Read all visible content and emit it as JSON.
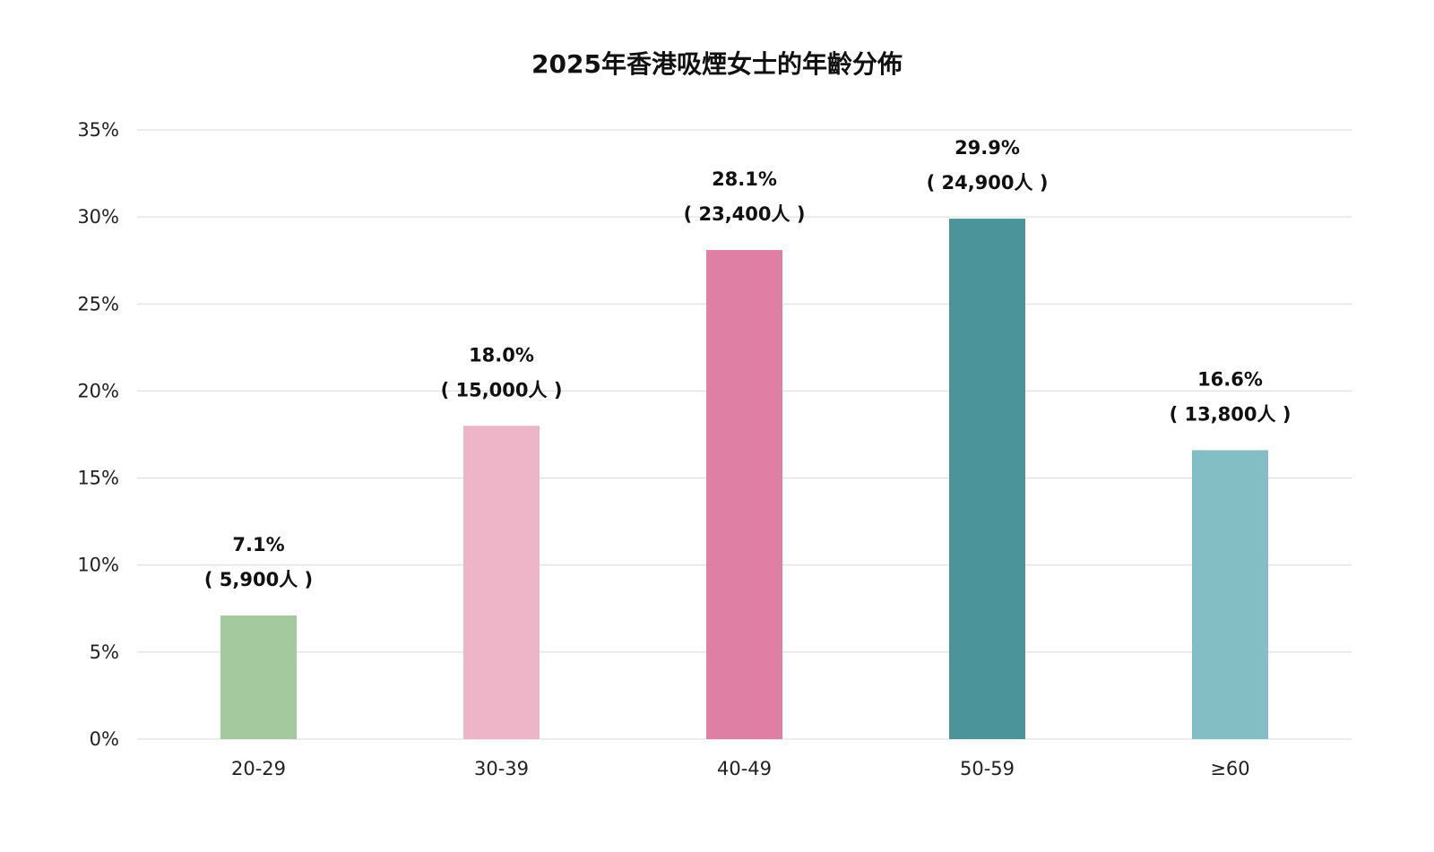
{
  "chart_data": {
    "type": "bar",
    "title": "2025年香港吸煙女士的年齡分佈",
    "categories": [
      "20-29",
      "30-39",
      "40-49",
      "50-59",
      "≥60"
    ],
    "values": [
      7.1,
      18.0,
      28.1,
      29.9,
      16.6
    ],
    "value_labels": [
      "7.1%",
      "18.0%",
      "28.1%",
      "29.9%",
      "16.6%"
    ],
    "count_labels": [
      "( 5,900人 )",
      "( 15,000人 )",
      "( 23,400人 )",
      "( 24,900人 )",
      "( 13,800人 )"
    ],
    "colors": [
      "#a4c99e",
      "#eeb5c9",
      "#e07fa4",
      "#4a949a",
      "#83bec5"
    ],
    "ylim": [
      0,
      35
    ],
    "yticks": [
      0,
      5,
      10,
      15,
      20,
      25,
      30,
      35
    ],
    "ytick_labels": [
      "0%",
      "5%",
      "10%",
      "15%",
      "20%",
      "25%",
      "30%",
      "35%"
    ],
    "xlabel": "",
    "ylabel": "",
    "grid": true,
    "legend": "none"
  }
}
